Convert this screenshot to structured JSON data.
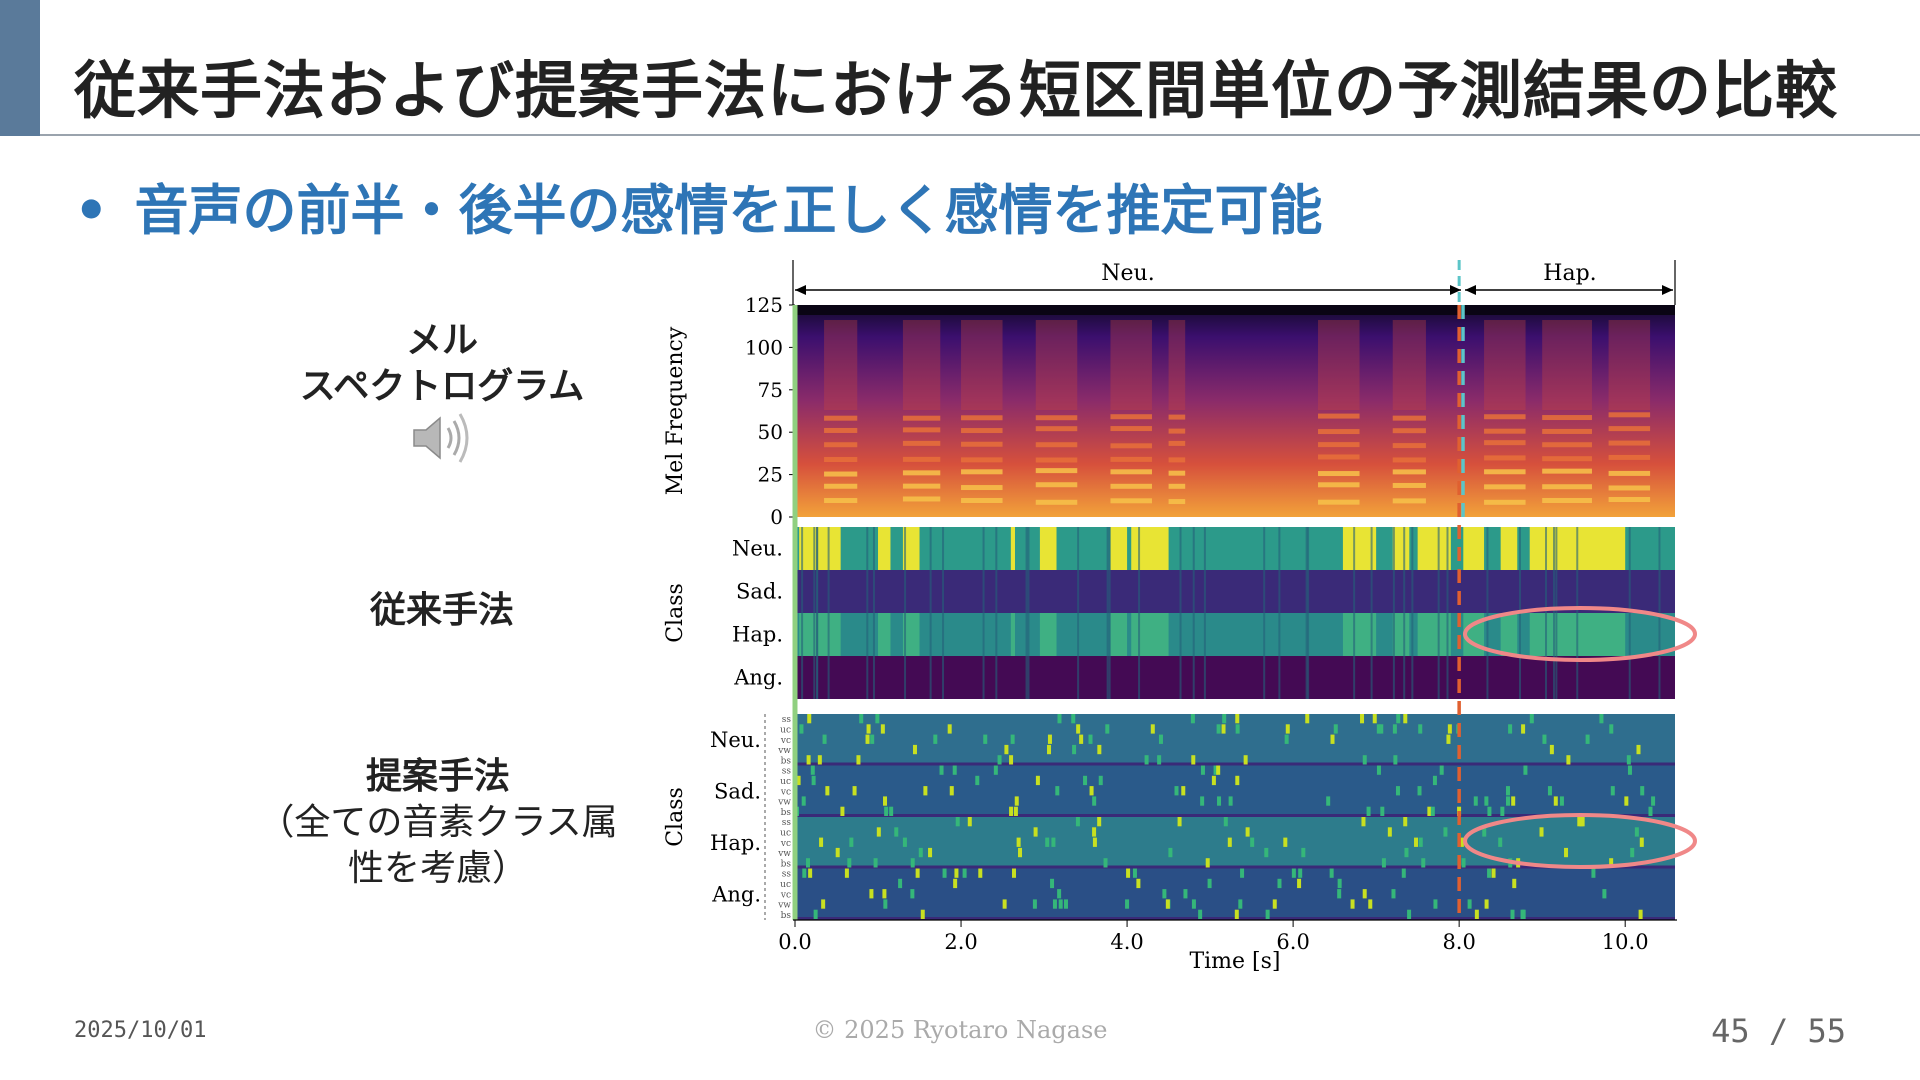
{
  "slide": {
    "title": "従来手法および提案手法における短区間単位の予測結果の比較",
    "bullet_symbol": "•",
    "bullet": "音声の前半・後半の感情を正しく感情を推定可能",
    "label_mel_line1": "メル",
    "label_mel_line2": "スペクトログラム",
    "label_conventional": "従来手法",
    "label_proposed_line1": "提案手法",
    "label_proposed_line2": "（全ての音素クラス属",
    "label_proposed_line3": "性を考慮）",
    "speaker_icon": "speaker-icon"
  },
  "footer": {
    "date": "2025/10/01",
    "copyright": "© 2025 Ryotaro Nagase",
    "page": "45 / 55"
  },
  "chart_data": {
    "type": "heatmap",
    "segments": [
      {
        "label": "Neu.",
        "start": 0.0,
        "end": 8.0
      },
      {
        "label": "Hap.",
        "start": 8.0,
        "end": 10.6
      }
    ],
    "xlabel": "Time [s]",
    "xticks": [
      "0.0",
      "2.0",
      "4.0",
      "6.0",
      "8.0",
      "10.0"
    ],
    "xlim": [
      0.0,
      10.6
    ],
    "boundary_time": 8.0,
    "panels": [
      {
        "name": "mel",
        "ylabel": "Mel Frequency",
        "yticks": [
          "125",
          "100",
          "75",
          "50",
          "25",
          "0"
        ],
        "ylim": [
          0,
          128
        ],
        "colormap": "inferno"
      },
      {
        "name": "conventional",
        "ylabel": "Class",
        "classes": [
          "Neu.",
          "Sad.",
          "Hap.",
          "Ang."
        ],
        "colormap": "viridis"
      },
      {
        "name": "proposed",
        "ylabel": "Class",
        "classes": [
          "Neu.",
          "Sad.",
          "Hap.",
          "Ang."
        ],
        "phoneme_classes": [
          "ss",
          "uc",
          "vc",
          "vw",
          "bs"
        ],
        "colormap": "viridis"
      }
    ],
    "colors": {
      "boundary_line": "#e06030",
      "boundary_line_top": "#5cc5c8",
      "highlight_ellipse": "#f08888",
      "start_line": "#90d080"
    }
  }
}
